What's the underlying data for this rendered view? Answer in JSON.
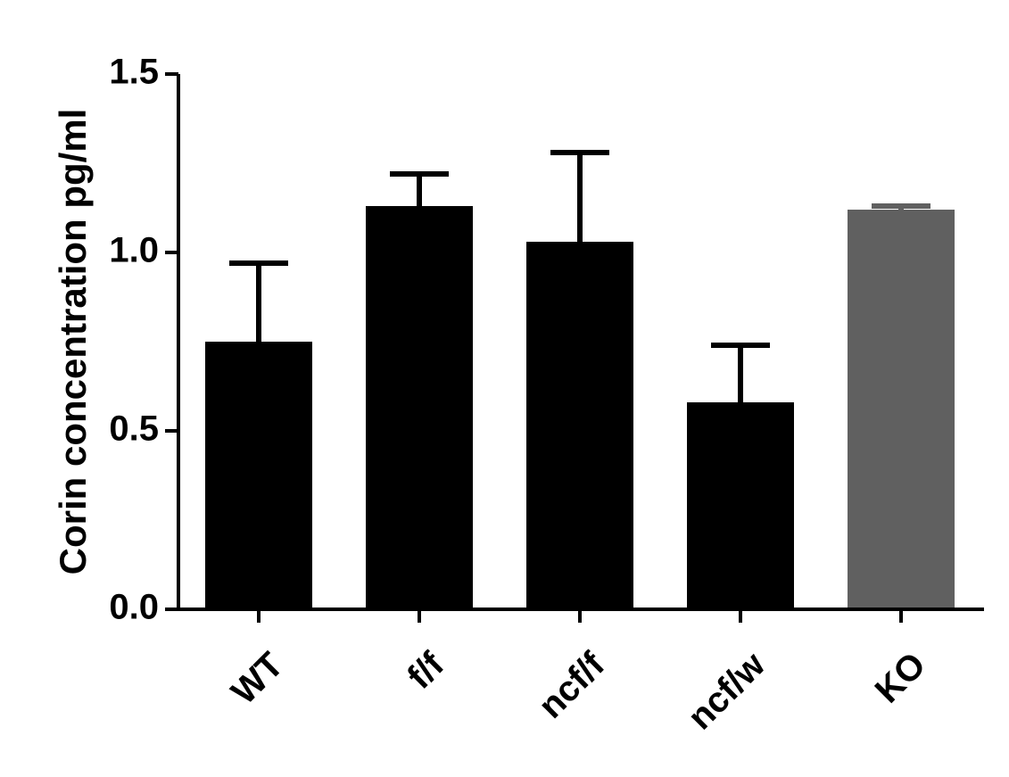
{
  "chart_data": {
    "type": "bar",
    "y_label": "Corin concentration pg/ml",
    "categories": [
      "WT",
      "f/f",
      "ncf/f",
      "ncf/w",
      "KO"
    ],
    "values": [
      0.75,
      1.13,
      1.03,
      0.58,
      1.12
    ],
    "errors": [
      0.22,
      0.09,
      0.25,
      0.16,
      0.01
    ],
    "colors": [
      "#000000",
      "#000000",
      "#000000",
      "#000000",
      "#606060"
    ],
    "ylim": [
      0,
      1.5
    ],
    "yticks": [
      {
        "value": 0,
        "label": "0.0"
      },
      0.5,
      {
        "value": 1,
        "label": "1.0"
      },
      1.5
    ]
  }
}
